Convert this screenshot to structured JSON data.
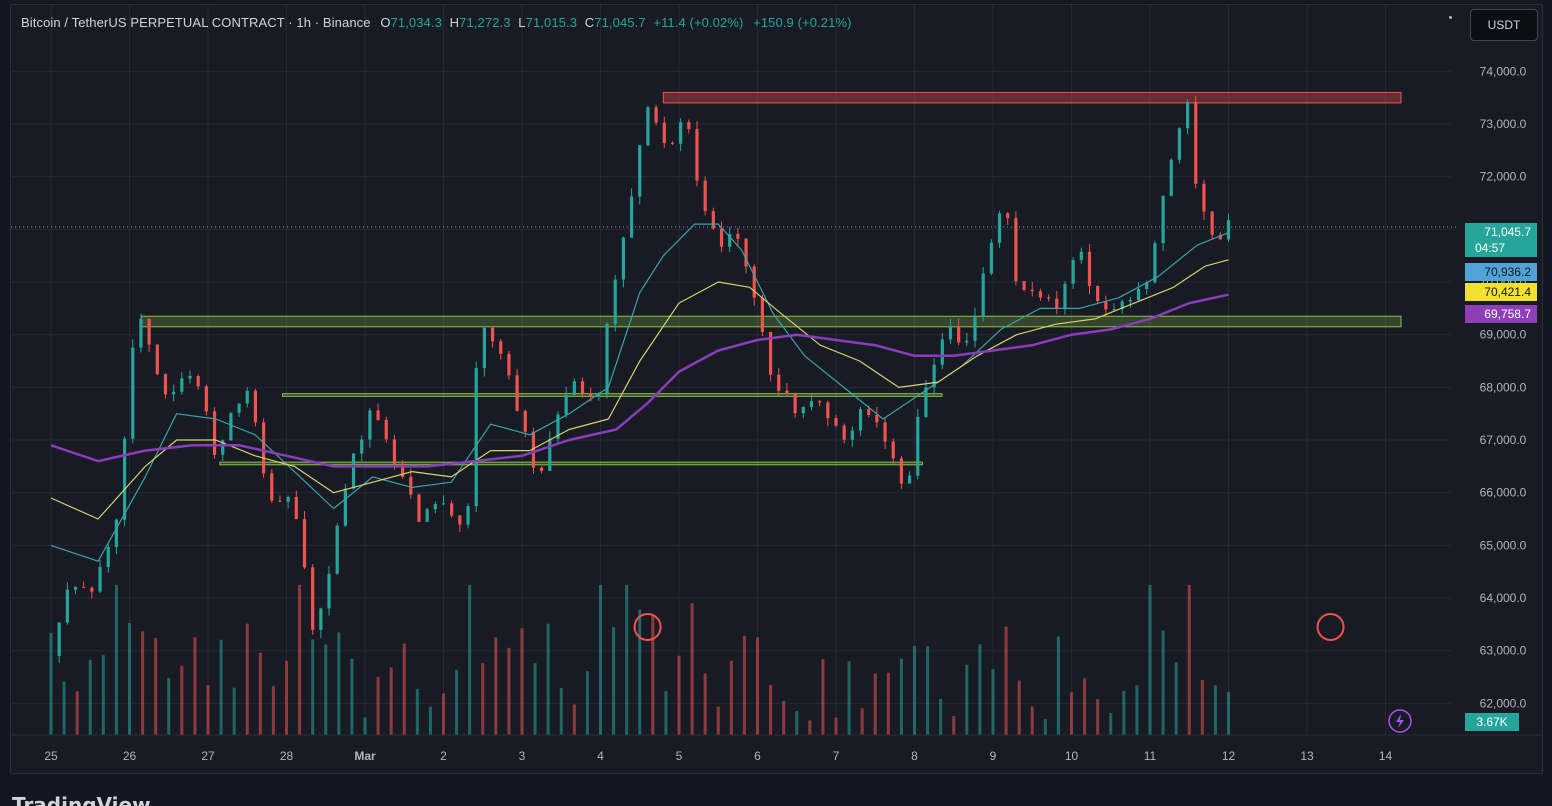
{
  "header": {
    "symbol": "Bitcoin / TetherUS PERPETUAL CONTRACT · 1h · Binance",
    "open_label": "O",
    "open": "71,034.3",
    "high_label": "H",
    "high": "71,272.3",
    "low_label": "L",
    "low": "71,015.3",
    "close_label": "C",
    "close": "71,045.7",
    "change": "+11.4 (+0.02%)",
    "volume_change": "+150.9 (+0.21%)"
  },
  "currency_button": "USDT",
  "footer_logo": "TradingView",
  "colors": {
    "up": "#26a69a",
    "down": "#ef5350",
    "ma_fast": "#3aa3a7",
    "ma_mid": "#d6d36a",
    "ma_slow": "#8a3dbb",
    "resistance_zone": "#ef5350",
    "support_zone": "#8bc34a"
  },
  "chart_data": {
    "type": "candlestick",
    "title": "Bitcoin / TetherUS PERPETUAL CONTRACT",
    "interval": "1h",
    "exchange": "Binance",
    "y_axis": {
      "ticks": [
        "74,000.0",
        "73,000.0",
        "72,000.0",
        "71,000.0",
        "70,000.0",
        "69,000.0",
        "68,000.0",
        "67,000.0",
        "66,000.0",
        "65,000.0",
        "64,000.0",
        "63,000.0",
        "62,000.0"
      ],
      "min": 61400,
      "max": 74500
    },
    "x_axis": {
      "ticks": [
        "25",
        "26",
        "27",
        "28",
        "Mar",
        "2",
        "3",
        "4",
        "5",
        "6",
        "7",
        "8",
        "9",
        "10",
        "11",
        "12",
        "13",
        "14"
      ],
      "bold_ticks": [
        "Mar"
      ]
    },
    "price_path": [
      [
        0,
        62900
      ],
      [
        0.25,
        64400
      ],
      [
        0.5,
        64100
      ],
      [
        0.8,
        65100
      ],
      [
        1.1,
        69500
      ],
      [
        1.3,
        68600
      ],
      [
        1.5,
        67700
      ],
      [
        1.7,
        68400
      ],
      [
        1.9,
        67900
      ],
      [
        2.1,
        66700
      ],
      [
        2.3,
        67600
      ],
      [
        2.55,
        68000
      ],
      [
        2.75,
        66000
      ],
      [
        3,
        65900
      ],
      [
        3.2,
        65200
      ],
      [
        3.3,
        63100
      ],
      [
        3.55,
        64600
      ],
      [
        3.85,
        66700
      ],
      [
        4.1,
        67600
      ],
      [
        4.4,
        66500
      ],
      [
        4.7,
        65500
      ],
      [
        4.95,
        65800
      ],
      [
        5.3,
        65400
      ],
      [
        5.45,
        69200
      ],
      [
        5.7,
        68800
      ],
      [
        5.95,
        67600
      ],
      [
        6.2,
        66200
      ],
      [
        6.5,
        67800
      ],
      [
        6.7,
        68100
      ],
      [
        6.95,
        67700
      ],
      [
        7.15,
        69800
      ],
      [
        7.45,
        72100
      ],
      [
        7.6,
        73300
      ],
      [
        7.85,
        72500
      ],
      [
        8.1,
        73100
      ],
      [
        8.3,
        71300
      ],
      [
        8.55,
        70700
      ],
      [
        8.75,
        70900
      ],
      [
        8.95,
        69800
      ],
      [
        9.15,
        68300
      ],
      [
        9.45,
        67600
      ],
      [
        9.8,
        67800
      ],
      [
        10.1,
        67000
      ],
      [
        10.3,
        67500
      ],
      [
        10.55,
        67200
      ],
      [
        10.7,
        66800
      ],
      [
        10.9,
        66000
      ],
      [
        11.05,
        67500
      ],
      [
        11.2,
        68100
      ],
      [
        11.4,
        69300
      ],
      [
        11.6,
        68600
      ],
      [
        11.8,
        69600
      ],
      [
        12,
        70900
      ],
      [
        12.15,
        71500
      ],
      [
        12.3,
        70000
      ],
      [
        12.55,
        69700
      ],
      [
        12.8,
        69500
      ],
      [
        13,
        70500
      ],
      [
        13.1,
        70600
      ],
      [
        13.3,
        69700
      ],
      [
        13.55,
        69400
      ],
      [
        13.75,
        69700
      ],
      [
        14,
        70100
      ],
      [
        14.2,
        72000
      ],
      [
        14.35,
        72900
      ],
      [
        14.48,
        73400
      ],
      [
        14.6,
        71700
      ],
      [
        14.75,
        71000
      ],
      [
        14.88,
        70700
      ],
      [
        15,
        71045.7
      ]
    ],
    "moving_averages": [
      {
        "name": "MA fast",
        "value": "70,936.2",
        "color": "#3aa3a7",
        "points": [
          [
            0,
            65000
          ],
          [
            0.6,
            64700
          ],
          [
            1.2,
            66300
          ],
          [
            1.6,
            67500
          ],
          [
            2.1,
            67400
          ],
          [
            2.6,
            67100
          ],
          [
            3.1,
            66400
          ],
          [
            3.6,
            65700
          ],
          [
            4.1,
            66300
          ],
          [
            4.6,
            66100
          ],
          [
            5.1,
            66200
          ],
          [
            5.6,
            67300
          ],
          [
            6.1,
            67100
          ],
          [
            6.6,
            67500
          ],
          [
            7.1,
            68000
          ],
          [
            7.5,
            69800
          ],
          [
            7.8,
            70500
          ],
          [
            8.2,
            71100
          ],
          [
            8.5,
            71100
          ],
          [
            8.8,
            70600
          ],
          [
            9.2,
            69400
          ],
          [
            9.6,
            68600
          ],
          [
            10.1,
            68000
          ],
          [
            10.6,
            67400
          ],
          [
            11.1,
            67900
          ],
          [
            11.6,
            68400
          ],
          [
            12.1,
            69100
          ],
          [
            12.6,
            69500
          ],
          [
            13.1,
            69500
          ],
          [
            13.6,
            69700
          ],
          [
            14.1,
            70100
          ],
          [
            14.6,
            70700
          ],
          [
            15,
            70936.2
          ]
        ]
      },
      {
        "name": "MA mid",
        "value": "70,421.4",
        "color": "#d6d36a",
        "points": [
          [
            0,
            65900
          ],
          [
            0.6,
            65500
          ],
          [
            1.2,
            66500
          ],
          [
            1.6,
            67000
          ],
          [
            2.1,
            67000
          ],
          [
            2.6,
            66700
          ],
          [
            3.1,
            66500
          ],
          [
            3.6,
            66000
          ],
          [
            4.1,
            66200
          ],
          [
            4.6,
            66400
          ],
          [
            5.1,
            66300
          ],
          [
            5.6,
            66800
          ],
          [
            6.1,
            66800
          ],
          [
            6.6,
            67200
          ],
          [
            7.1,
            67400
          ],
          [
            7.5,
            68500
          ],
          [
            8,
            69600
          ],
          [
            8.5,
            70000
          ],
          [
            8.9,
            69900
          ],
          [
            9.3,
            69400
          ],
          [
            9.8,
            68800
          ],
          [
            10.3,
            68500
          ],
          [
            10.8,
            68000
          ],
          [
            11.3,
            68100
          ],
          [
            11.8,
            68600
          ],
          [
            12.3,
            69000
          ],
          [
            12.8,
            69200
          ],
          [
            13.3,
            69300
          ],
          [
            13.8,
            69600
          ],
          [
            14.3,
            69900
          ],
          [
            14.7,
            70300
          ],
          [
            15,
            70421.4
          ]
        ]
      },
      {
        "name": "MA slow",
        "value": "69,758.7",
        "color": "#8a3dbb",
        "points": [
          [
            0,
            66900
          ],
          [
            0.6,
            66600
          ],
          [
            1.2,
            66800
          ],
          [
            1.8,
            66900
          ],
          [
            2.4,
            66900
          ],
          [
            3,
            66700
          ],
          [
            3.6,
            66500
          ],
          [
            4.2,
            66500
          ],
          [
            4.8,
            66500
          ],
          [
            5.4,
            66600
          ],
          [
            6,
            66700
          ],
          [
            6.6,
            67000
          ],
          [
            7.2,
            67200
          ],
          [
            7.6,
            67700
          ],
          [
            8,
            68300
          ],
          [
            8.5,
            68700
          ],
          [
            9,
            68900
          ],
          [
            9.5,
            69000
          ],
          [
            10,
            68900
          ],
          [
            10.5,
            68800
          ],
          [
            11,
            68600
          ],
          [
            11.5,
            68600
          ],
          [
            12,
            68700
          ],
          [
            12.5,
            68800
          ],
          [
            13,
            69000
          ],
          [
            13.5,
            69100
          ],
          [
            14,
            69300
          ],
          [
            14.5,
            69600
          ],
          [
            15,
            69758.7
          ]
        ]
      }
    ],
    "last_price": {
      "value": "71,045.7",
      "countdown": "04:57",
      "color": "#26a69a"
    },
    "zones": [
      {
        "kind": "resistance",
        "x0": 7.8,
        "x1": 17.2,
        "y0": 73400,
        "y1": 73600
      },
      {
        "kind": "support",
        "x0": 1.15,
        "x1": 17.2,
        "y0": 69150,
        "y1": 69350
      },
      {
        "kind": "support",
        "x0": 2.95,
        "x1": 11.35,
        "y0": 67830,
        "y1": 67880
      },
      {
        "kind": "support",
        "x0": 2.15,
        "x1": 11.1,
        "y0": 66530,
        "y1": 66580
      }
    ],
    "volume": {
      "label": "3.67K",
      "highlights": [
        {
          "x": 7.6
        },
        {
          "x": 16.3
        }
      ]
    }
  }
}
